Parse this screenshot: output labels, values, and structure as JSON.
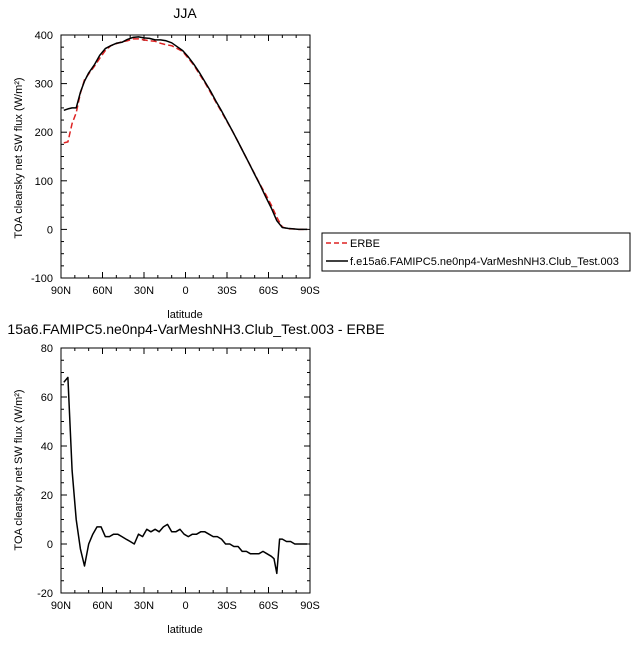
{
  "chart_data": [
    {
      "type": "line",
      "title": "JJA",
      "xlabel": "latitude",
      "ylabel": "TOA clearsky net SW flux (W/m²)",
      "xlim": [
        90,
        -90
      ],
      "ylim": [
        -100,
        400
      ],
      "x_ticks": [
        90,
        60,
        30,
        0,
        -30,
        -60,
        -90
      ],
      "x_tick_labels": [
        "90N",
        "60N",
        "30N",
        "0",
        "30S",
        "60S",
        "90S"
      ],
      "y_ticks": [
        -100,
        0,
        100,
        200,
        300,
        400
      ],
      "y_tick_labels": [
        "-100",
        "0",
        "100",
        "200",
        "300",
        "400"
      ],
      "legend_position": "right",
      "series": [
        {
          "name": "ERBE",
          "color": "#dd2222",
          "dash": "dashed",
          "x": [
            88,
            85,
            82,
            79,
            76,
            73,
            70,
            66,
            62,
            58,
            54,
            50,
            46,
            42,
            38,
            34,
            30,
            26,
            22,
            18,
            14,
            10,
            6,
            2,
            -2,
            -6,
            -10,
            -14,
            -18,
            -22,
            -26,
            -30,
            -34,
            -38,
            -42,
            -46,
            -50,
            -54,
            -58,
            -62,
            -66,
            -70,
            -74,
            -78,
            -82,
            -86,
            -88
          ],
          "y": [
            178,
            180,
            218,
            240,
            280,
            308,
            320,
            335,
            352,
            368,
            378,
            382,
            386,
            388,
            392,
            392,
            390,
            388,
            387,
            383,
            380,
            378,
            372,
            366,
            352,
            338,
            320,
            302,
            282,
            262,
            242,
            222,
            202,
            180,
            158,
            136,
            114,
            92,
            72,
            50,
            25,
            5,
            1,
            1,
            0,
            0,
            0
          ]
        },
        {
          "name": "f.e15a6.FAMIPC5.ne0np4-VarMeshNH3.Club_Test.003",
          "color": "#000000",
          "dash": "solid",
          "x": [
            88,
            85,
            82,
            79,
            76,
            73,
            70,
            66,
            62,
            58,
            54,
            50,
            46,
            42,
            38,
            34,
            30,
            26,
            22,
            18,
            14,
            10,
            6,
            2,
            -2,
            -6,
            -10,
            -14,
            -18,
            -22,
            -26,
            -30,
            -34,
            -38,
            -42,
            -46,
            -50,
            -54,
            -58,
            -62,
            -66,
            -70,
            -74,
            -78,
            -82,
            -86,
            -88
          ],
          "y": [
            245,
            248,
            250,
            250,
            282,
            305,
            322,
            338,
            358,
            372,
            378,
            383,
            385,
            391,
            395,
            396,
            394,
            393,
            390,
            390,
            388,
            384,
            376,
            368,
            355,
            340,
            323,
            304,
            285,
            264,
            244,
            223,
            202,
            180,
            158,
            136,
            113,
            91,
            67,
            44,
            18,
            4,
            2,
            1,
            0,
            0,
            0
          ]
        }
      ]
    },
    {
      "type": "line",
      "title": "15a6.FAMIPC5.ne0np4-VarMeshNH3.Club_Test.003 - ERBE",
      "xlabel": "latitude",
      "ylabel": "TOA clearsky net SW flux (W/m²)",
      "xlim": [
        90,
        -90
      ],
      "ylim": [
        -20,
        80
      ],
      "x_ticks": [
        90,
        60,
        30,
        0,
        -30,
        -60,
        -90
      ],
      "x_tick_labels": [
        "90N",
        "60N",
        "30N",
        "0",
        "30S",
        "60S",
        "90S"
      ],
      "y_ticks": [
        -20,
        0,
        20,
        40,
        60,
        80
      ],
      "y_tick_labels": [
        "-20",
        "0",
        "20",
        "40",
        "60",
        "80"
      ],
      "series": [
        {
          "color": "#000000",
          "dash": "solid",
          "x": [
            88,
            85,
            82,
            79,
            76,
            73,
            70,
            67,
            64,
            61,
            58,
            55,
            52,
            49,
            46,
            43,
            40,
            37,
            34,
            31,
            28,
            25,
            22,
            19,
            16,
            13,
            10,
            7,
            4,
            1,
            -2,
            -5,
            -8,
            -11,
            -14,
            -17,
            -20,
            -23,
            -26,
            -29,
            -32,
            -35,
            -38,
            -41,
            -44,
            -47,
            -50,
            -53,
            -56,
            -59,
            -62,
            -64,
            -66,
            -68,
            -70,
            -73,
            -76,
            -79,
            -82,
            -86,
            -88
          ],
          "y": [
            66,
            68,
            30,
            10,
            -2,
            -9,
            0,
            4,
            7,
            7,
            3,
            3,
            4,
            4,
            3,
            2,
            1,
            0,
            4,
            3,
            6,
            5,
            6,
            5,
            7,
            8,
            5,
            5,
            6,
            4,
            3,
            4,
            4,
            5,
            5,
            4,
            3,
            3,
            2,
            0,
            0,
            -1,
            -1,
            -3,
            -3,
            -4,
            -4,
            -4,
            -3,
            -4,
            -5,
            -6,
            -12,
            2,
            2,
            1,
            1,
            0,
            0,
            0,
            0
          ]
        }
      ]
    }
  ]
}
